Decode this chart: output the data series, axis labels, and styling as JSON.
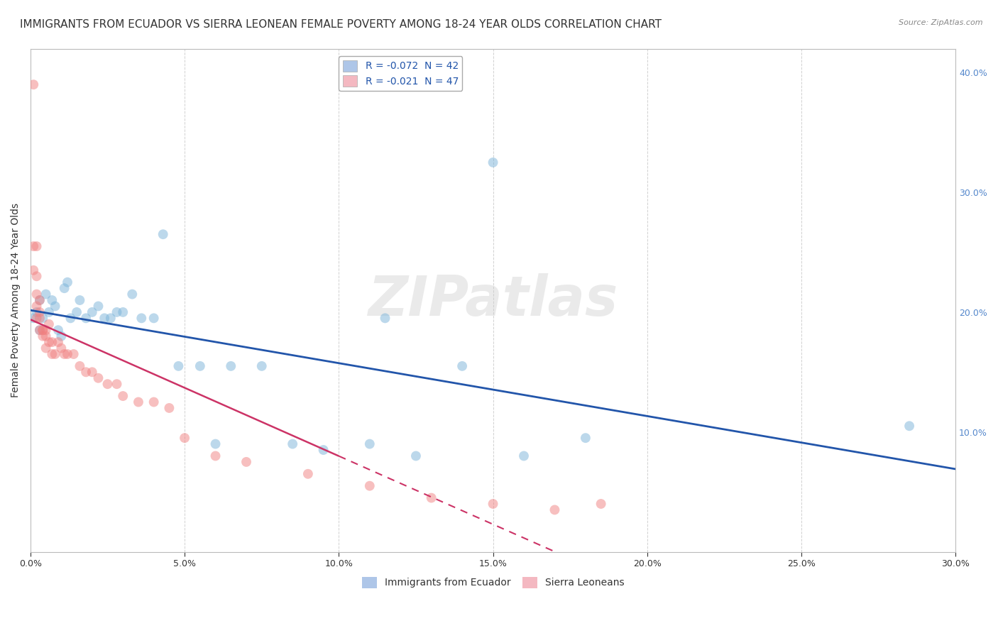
{
  "title": "IMMIGRANTS FROM ECUADOR VS SIERRA LEONEAN FEMALE POVERTY AMONG 18-24 YEAR OLDS CORRELATION CHART",
  "source": "Source: ZipAtlas.com",
  "ylabel": "Female Poverty Among 18-24 Year Olds",
  "watermark": "ZIPatlas",
  "xlim": [
    0.0,
    0.3
  ],
  "ylim": [
    0.0,
    0.42
  ],
  "xticks": [
    0.0,
    0.05,
    0.1,
    0.15,
    0.2,
    0.25,
    0.3
  ],
  "ytick_vals": [
    0.1,
    0.2,
    0.3,
    0.4
  ],
  "ytick_labels_right": [
    "10.0%",
    "20.0%",
    "30.0%",
    "40.0%"
  ],
  "xtick_labels": [
    "0.0%",
    "5.0%",
    "10.0%",
    "15.0%",
    "20.0%",
    "25.0%",
    "30.0%"
  ],
  "legend_entries": [
    {
      "label": "R = -0.072  N = 42",
      "color": "#aec6e8"
    },
    {
      "label": "R = -0.021  N = 47",
      "color": "#f4b8c1"
    }
  ],
  "legend_label_bottom": [
    "Immigrants from Ecuador",
    "Sierra Leoneans"
  ],
  "ecuador_color": "#7ab3d9",
  "sierra_color": "#f08080",
  "ecuador_line_color": "#2255aa",
  "sierra_line_color": "#cc3366",
  "ecuador_x": [
    0.001,
    0.002,
    0.003,
    0.003,
    0.004,
    0.005,
    0.006,
    0.007,
    0.008,
    0.009,
    0.01,
    0.011,
    0.012,
    0.013,
    0.015,
    0.016,
    0.018,
    0.02,
    0.022,
    0.024,
    0.026,
    0.028,
    0.03,
    0.033,
    0.036,
    0.04,
    0.043,
    0.048,
    0.055,
    0.06,
    0.065,
    0.075,
    0.085,
    0.095,
    0.11,
    0.125,
    0.14,
    0.16,
    0.18,
    0.115,
    0.15,
    0.285
  ],
  "ecuador_y": [
    0.195,
    0.2,
    0.185,
    0.21,
    0.195,
    0.215,
    0.2,
    0.21,
    0.205,
    0.185,
    0.18,
    0.22,
    0.225,
    0.195,
    0.2,
    0.21,
    0.195,
    0.2,
    0.205,
    0.195,
    0.195,
    0.2,
    0.2,
    0.215,
    0.195,
    0.195,
    0.265,
    0.155,
    0.155,
    0.09,
    0.155,
    0.155,
    0.09,
    0.085,
    0.09,
    0.08,
    0.155,
    0.08,
    0.095,
    0.195,
    0.325,
    0.105
  ],
  "sierra_x": [
    0.001,
    0.001,
    0.001,
    0.002,
    0.002,
    0.002,
    0.002,
    0.002,
    0.003,
    0.003,
    0.003,
    0.003,
    0.004,
    0.004,
    0.004,
    0.005,
    0.005,
    0.005,
    0.006,
    0.006,
    0.007,
    0.007,
    0.008,
    0.009,
    0.01,
    0.011,
    0.012,
    0.014,
    0.016,
    0.018,
    0.02,
    0.022,
    0.025,
    0.028,
    0.03,
    0.035,
    0.04,
    0.045,
    0.05,
    0.06,
    0.07,
    0.09,
    0.11,
    0.13,
    0.15,
    0.17,
    0.185
  ],
  "sierra_y": [
    0.39,
    0.255,
    0.235,
    0.255,
    0.23,
    0.215,
    0.205,
    0.195,
    0.21,
    0.2,
    0.195,
    0.185,
    0.185,
    0.185,
    0.18,
    0.185,
    0.18,
    0.17,
    0.19,
    0.175,
    0.175,
    0.165,
    0.165,
    0.175,
    0.17,
    0.165,
    0.165,
    0.165,
    0.155,
    0.15,
    0.15,
    0.145,
    0.14,
    0.14,
    0.13,
    0.125,
    0.125,
    0.12,
    0.095,
    0.08,
    0.075,
    0.065,
    0.055,
    0.045,
    0.04,
    0.035,
    0.04
  ],
  "bg_color": "#ffffff",
  "grid_color": "#cccccc",
  "title_fontsize": 11,
  "axis_label_fontsize": 10,
  "tick_fontsize": 9,
  "legend_fontsize": 10,
  "marker_size": 100,
  "marker_alpha": 0.5
}
